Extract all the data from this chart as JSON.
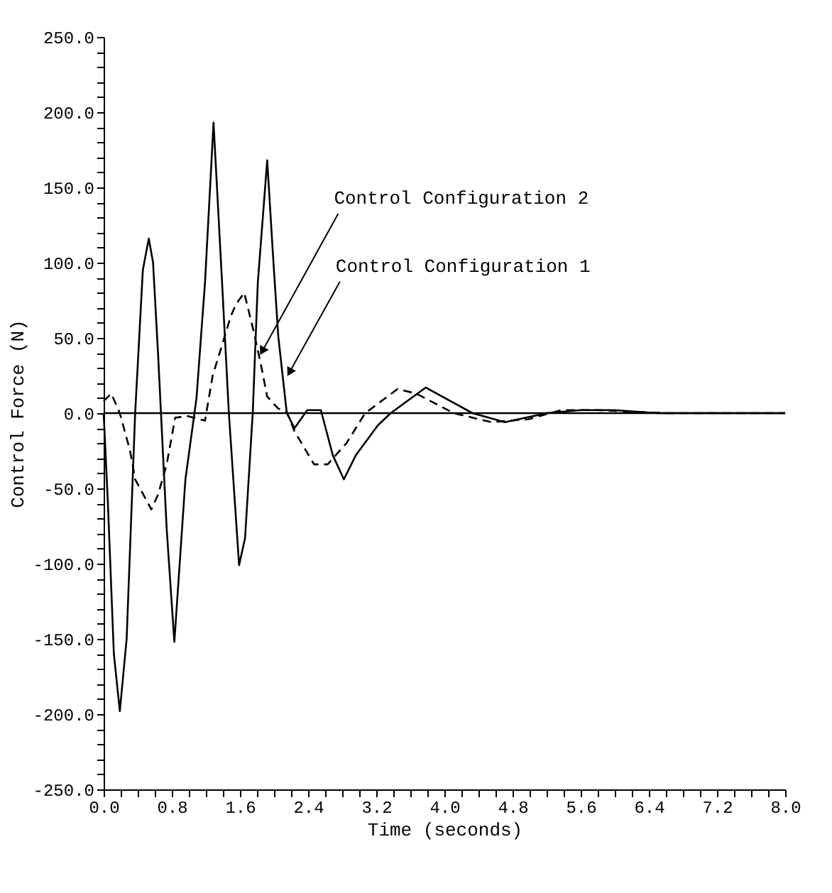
{
  "chart_data": {
    "type": "line",
    "xlabel": "Time (seconds)",
    "ylabel": "Control Force (N)",
    "xlim": [
      0,
      8
    ],
    "ylim": [
      -250,
      250
    ],
    "xticks": [
      {
        "value": 0,
        "label": "0.0"
      },
      {
        "value": 0.2,
        "label": null
      },
      {
        "value": 0.4,
        "label": null
      },
      {
        "value": 0.6,
        "label": null
      },
      {
        "value": 0.8,
        "label": "0.8"
      },
      {
        "value": 1.0,
        "label": null
      },
      {
        "value": 1.2,
        "label": null
      },
      {
        "value": 1.4,
        "label": null
      },
      {
        "value": 1.6,
        "label": "1.6"
      },
      {
        "value": 1.8,
        "label": null
      },
      {
        "value": 2.0,
        "label": null
      },
      {
        "value": 2.2,
        "label": null
      },
      {
        "value": 2.4,
        "label": "2.4"
      },
      {
        "value": 2.6,
        "label": null
      },
      {
        "value": 2.8,
        "label": null
      },
      {
        "value": 3.0,
        "label": null
      },
      {
        "value": 3.2,
        "label": "3.2"
      },
      {
        "value": 3.4,
        "label": null
      },
      {
        "value": 3.6,
        "label": null
      },
      {
        "value": 3.8,
        "label": null
      },
      {
        "value": 4,
        "label": "4.0"
      },
      {
        "value": 4.2,
        "label": null
      },
      {
        "value": 4.4,
        "label": null
      },
      {
        "value": 4.6,
        "label": null
      },
      {
        "value": 4.8,
        "label": "4.8"
      },
      {
        "value": 5.0,
        "label": null
      },
      {
        "value": 5.2,
        "label": null
      },
      {
        "value": 5.4,
        "label": null
      },
      {
        "value": 5.6,
        "label": "5.6"
      },
      {
        "value": 5.8,
        "label": null
      },
      {
        "value": 6.0,
        "label": null
      },
      {
        "value": 6.2,
        "label": null
      },
      {
        "value": 6.4,
        "label": "6.4"
      },
      {
        "value": 6.6,
        "label": null
      },
      {
        "value": 6.8,
        "label": null
      },
      {
        "value": 7.0,
        "label": null
      },
      {
        "value": 7.2,
        "label": "7.2"
      },
      {
        "value": 7.4,
        "label": null
      },
      {
        "value": 7.6,
        "label": null
      },
      {
        "value": 7.8,
        "label": null
      },
      {
        "value": 8,
        "label": "8.0"
      }
    ],
    "yticks": [
      {
        "value": -250,
        "label": "-250.0"
      },
      {
        "value": -240,
        "label": null
      },
      {
        "value": -230,
        "label": null
      },
      {
        "value": -220,
        "label": null
      },
      {
        "value": -210,
        "label": null
      },
      {
        "value": -200,
        "label": "-200.0"
      },
      {
        "value": -190,
        "label": null
      },
      {
        "value": -180,
        "label": null
      },
      {
        "value": -170,
        "label": null
      },
      {
        "value": -160,
        "label": null
      },
      {
        "value": -150,
        "label": "-150.0"
      },
      {
        "value": -140,
        "label": null
      },
      {
        "value": -130,
        "label": null
      },
      {
        "value": -120,
        "label": null
      },
      {
        "value": -110,
        "label": null
      },
      {
        "value": -100,
        "label": "-100.0"
      },
      {
        "value": -90,
        "label": null
      },
      {
        "value": -80,
        "label": null
      },
      {
        "value": -70,
        "label": null
      },
      {
        "value": -60,
        "label": null
      },
      {
        "value": -50,
        "label": "-50.0"
      },
      {
        "value": -40,
        "label": null
      },
      {
        "value": -30,
        "label": null
      },
      {
        "value": -20,
        "label": null
      },
      {
        "value": -10,
        "label": null
      },
      {
        "value": 0,
        "label": "0.0"
      },
      {
        "value": 10,
        "label": null
      },
      {
        "value": 20,
        "label": null
      },
      {
        "value": 30,
        "label": null
      },
      {
        "value": 40,
        "label": null
      },
      {
        "value": 50,
        "label": "50.0"
      },
      {
        "value": 60,
        "label": null
      },
      {
        "value": 70,
        "label": null
      },
      {
        "value": 80,
        "label": null
      },
      {
        "value": 90,
        "label": null
      },
      {
        "value": 100,
        "label": "100.0"
      },
      {
        "value": 110,
        "label": null
      },
      {
        "value": 120,
        "label": null
      },
      {
        "value": 130,
        "label": null
      },
      {
        "value": 140,
        "label": null
      },
      {
        "value": 150,
        "label": "150.0"
      },
      {
        "value": 160,
        "label": null
      },
      {
        "value": 170,
        "label": null
      },
      {
        "value": 180,
        "label": null
      },
      {
        "value": 190,
        "label": null
      },
      {
        "value": 200,
        "label": "200.0"
      },
      {
        "value": 210,
        "label": null
      },
      {
        "value": 220,
        "label": null
      },
      {
        "value": 230,
        "label": null
      },
      {
        "value": 240,
        "label": null
      },
      {
        "value": 250,
        "label": "250.0"
      }
    ],
    "grid": false,
    "series": [
      {
        "color": "#000000",
        "line_style": "solid",
        "x": [
          0,
          0.05,
          0.12,
          0.19,
          0.27,
          0.37,
          0.46,
          0.53,
          0.58,
          0.64,
          0.74,
          0.83,
          0.96,
          1.09,
          1.19,
          1.29,
          1.39,
          1.47,
          1.59,
          1.66,
          1.75,
          1.81,
          1.92,
          1.99,
          2.05,
          2.15,
          2.24,
          2.39,
          2.55,
          2.69,
          2.82,
          2.96,
          3.22,
          3.37,
          3.78,
          4.33,
          4.71,
          5.2,
          5.6,
          6.0,
          6.5,
          7.0,
          7.5,
          8.0
        ],
        "values": [
          0,
          -60,
          -160,
          -198,
          -150,
          0,
          95,
          116,
          100,
          38,
          -77,
          -152,
          -44,
          10,
          87,
          193,
          87,
          0,
          -101,
          -83,
          0,
          87,
          168,
          103,
          51,
          0,
          -10,
          2,
          2,
          -28,
          -44,
          -28,
          -8,
          0,
          17,
          0,
          -6,
          0,
          2,
          2,
          0,
          0,
          0,
          0
        ]
      },
      {
        "color": "#000000",
        "line_style": "dashed",
        "x": [
          0,
          0.09,
          0.19,
          0.31,
          0.37,
          0.56,
          0.64,
          0.74,
          0.84,
          0.99,
          1.19,
          1.28,
          1.4,
          1.49,
          1.55,
          1.65,
          1.75,
          1.84,
          1.92,
          2.05,
          2.15,
          2.24,
          2.47,
          2.63,
          2.85,
          3.07,
          3.45,
          3.67,
          4.11,
          4.55,
          4.99,
          5.37,
          5.8,
          6.2,
          6.6,
          7.0,
          7.5,
          8.0
        ],
        "values": [
          8,
          13,
          0,
          -25,
          -44,
          -64,
          -54,
          -34,
          -3,
          -2,
          -5,
          25,
          47,
          64,
          72,
          80,
          57,
          34,
          11,
          3,
          1,
          -12,
          -34,
          -34,
          -20,
          0,
          16,
          13,
          0,
          -6,
          -4,
          2,
          2,
          1,
          0,
          0,
          0,
          0
        ]
      }
    ],
    "ref_lines": [
      {
        "axis": "y",
        "value": 0,
        "color": "#000000",
        "line_style": "solid"
      }
    ],
    "annotations": [
      {
        "text": "Control Configuration 2",
        "x": 1.87,
        "y": 42
      },
      {
        "text": "Control Configuration 1",
        "x": 2.19,
        "y": 28
      }
    ]
  }
}
